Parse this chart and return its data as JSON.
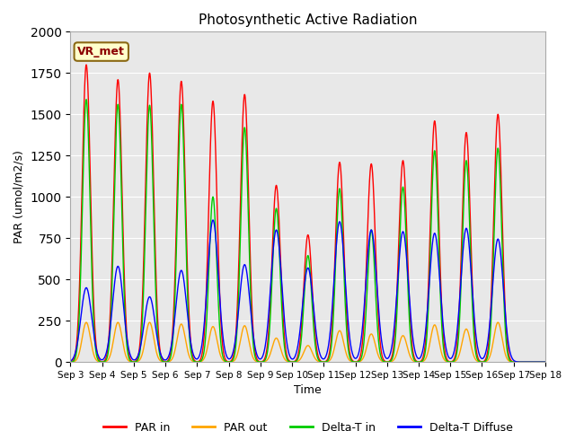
{
  "title": "Photosynthetic Active Radiation",
  "xlabel": "Time",
  "ylabel": "PAR (umol/m2/s)",
  "ylim": [
    0,
    2000
  ],
  "annotation": "VR_met",
  "legend": [
    "PAR in",
    "PAR out",
    "Delta-T in",
    "Delta-T Diffuse"
  ],
  "line_colors": [
    "#ff0000",
    "#ffa500",
    "#00cc00",
    "#0000ff"
  ],
  "background_color": "#e8e8e8",
  "x_tick_labels": [
    "Sep 3",
    "Sep 4",
    "Sep 5",
    "Sep 6",
    "Sep 7",
    "Sep 8",
    "Sep 9",
    "Sep 10",
    "Sep 11",
    "Sep 12",
    "Sep 13",
    "Sep 14",
    "Sep 15",
    "Sep 16",
    "Sep 17",
    "Sep 18"
  ],
  "par_in_peaks": [
    1800,
    1710,
    1750,
    1700,
    1580,
    1620,
    1070,
    770,
    1210,
    1200,
    1220,
    1460,
    1390,
    1500
  ],
  "par_out_peaks": [
    240,
    240,
    240,
    230,
    215,
    220,
    145,
    100,
    190,
    170,
    160,
    225,
    200,
    240
  ],
  "delta_t_in_peaks": [
    1590,
    1560,
    1555,
    1560,
    1000,
    1420,
    930,
    645,
    1050,
    800,
    1060,
    1280,
    1220,
    1295
  ],
  "delta_t_diff_peaks": [
    450,
    580,
    395,
    555,
    860,
    590,
    800,
    570,
    850,
    800,
    790,
    780,
    810,
    745
  ]
}
